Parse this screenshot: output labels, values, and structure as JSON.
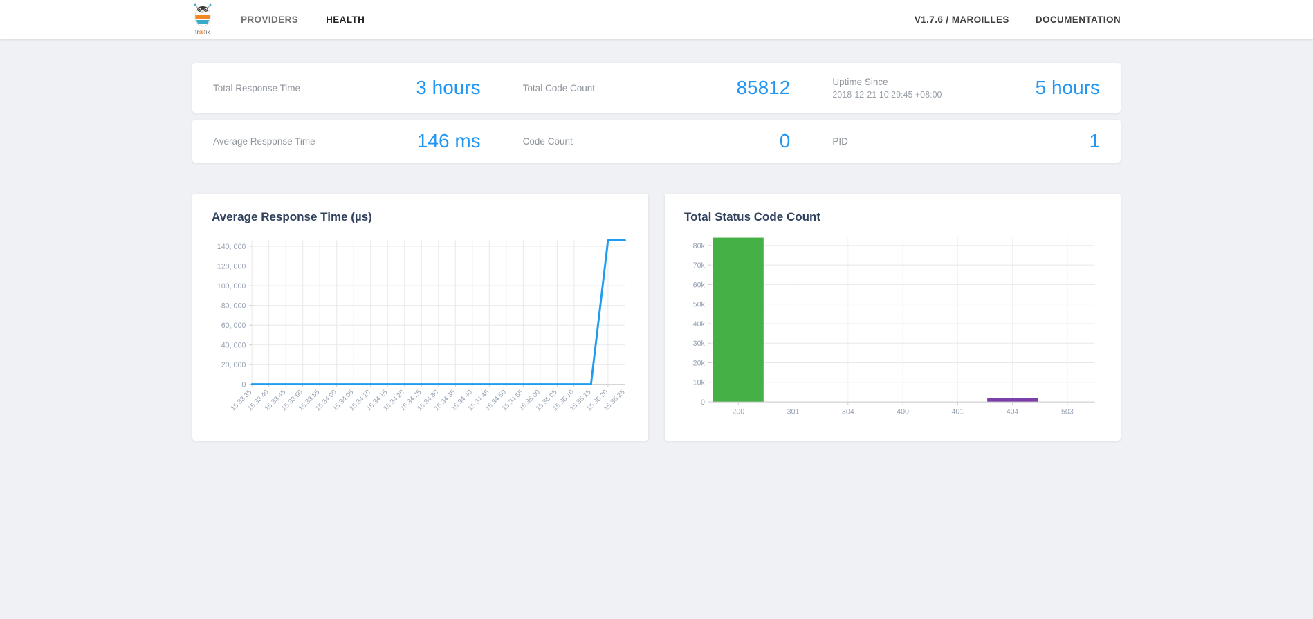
{
  "navbar": {
    "logo": {
      "part1": "tr",
      "part2": "æ",
      "part3": "fik"
    },
    "items": [
      {
        "label": "PROVIDERS",
        "active": false
      },
      {
        "label": "HEALTH",
        "active": true
      }
    ],
    "right_items": [
      {
        "label": "V1.7.6 / MAROILLES"
      },
      {
        "label": "DOCUMENTATION"
      }
    ]
  },
  "stats": {
    "row1": [
      {
        "label": "Total Response Time",
        "value": "3 hours"
      },
      {
        "label": "Total Code Count",
        "value": "85812"
      },
      {
        "label": "Uptime Since",
        "sublabel": "2018-12-21 10:29:45 +08:00",
        "value": "5 hours"
      }
    ],
    "row2": [
      {
        "label": "Average Response Time",
        "value": "146 ms"
      },
      {
        "label": "Code Count",
        "value": "0"
      },
      {
        "label": "PID",
        "value": "1"
      }
    ]
  },
  "colors": {
    "accent_blue": "#2196F3",
    "line_blue": "#1E9CEF",
    "bar_green": "#45B045",
    "bar_purple": "#7C3FA9",
    "grid": "#E8E8E8",
    "grid_faint": "#F0F0F2",
    "axis": "#CCCCCC",
    "tick_text": "#98A3B2",
    "title_text": "#30415D"
  },
  "chart_data": [
    {
      "type": "line",
      "title": "Average Response Time (µs)",
      "x": [
        "15:33:35",
        "15:33:40",
        "15:33:45",
        "15:33:50",
        "15:33:55",
        "15:34:00",
        "15:34:05",
        "15:34:10",
        "15:34:15",
        "15:34:20",
        "15:34:25",
        "15:34:30",
        "15:34:35",
        "15:34:40",
        "15:34:45",
        "15:34:50",
        "15:34:55",
        "15:35:00",
        "15:35:05",
        "15:35:10",
        "15:35:15",
        "15:35:20",
        "15:35:25"
      ],
      "values": [
        150,
        150,
        150,
        150,
        150,
        150,
        150,
        150,
        150,
        150,
        150,
        150,
        150,
        150,
        150,
        150,
        150,
        150,
        150,
        150,
        150,
        146000,
        146000
      ],
      "ylim": [
        0,
        146000
      ],
      "y_ticks": [
        0,
        20000,
        40000,
        60000,
        80000,
        100000,
        120000,
        140000
      ],
      "y_tick_labels": [
        "0",
        "20, 000",
        "40, 000",
        "60, 000",
        "80, 000",
        "100, 000",
        "120, 000",
        "140, 000"
      ],
      "grid": true,
      "legend": "none"
    },
    {
      "type": "bar",
      "title": "Total Status Code Count",
      "categories": [
        "200",
        "301",
        "304",
        "400",
        "401",
        "404",
        "503"
      ],
      "values": [
        84000,
        0,
        0,
        0,
        0,
        1800,
        0
      ],
      "bar_colors": [
        "#45B045",
        "#45B045",
        "#45B045",
        "#45B045",
        "#45B045",
        "#7C3FA9",
        "#45B045"
      ],
      "ylim": [
        0,
        84000
      ],
      "y_ticks": [
        0,
        10000,
        20000,
        30000,
        40000,
        50000,
        60000,
        70000,
        80000
      ],
      "y_tick_labels": [
        "0",
        "10k",
        "20k",
        "30k",
        "40k",
        "50k",
        "60k",
        "70k",
        "80k"
      ],
      "grid": true,
      "legend": "none"
    }
  ]
}
